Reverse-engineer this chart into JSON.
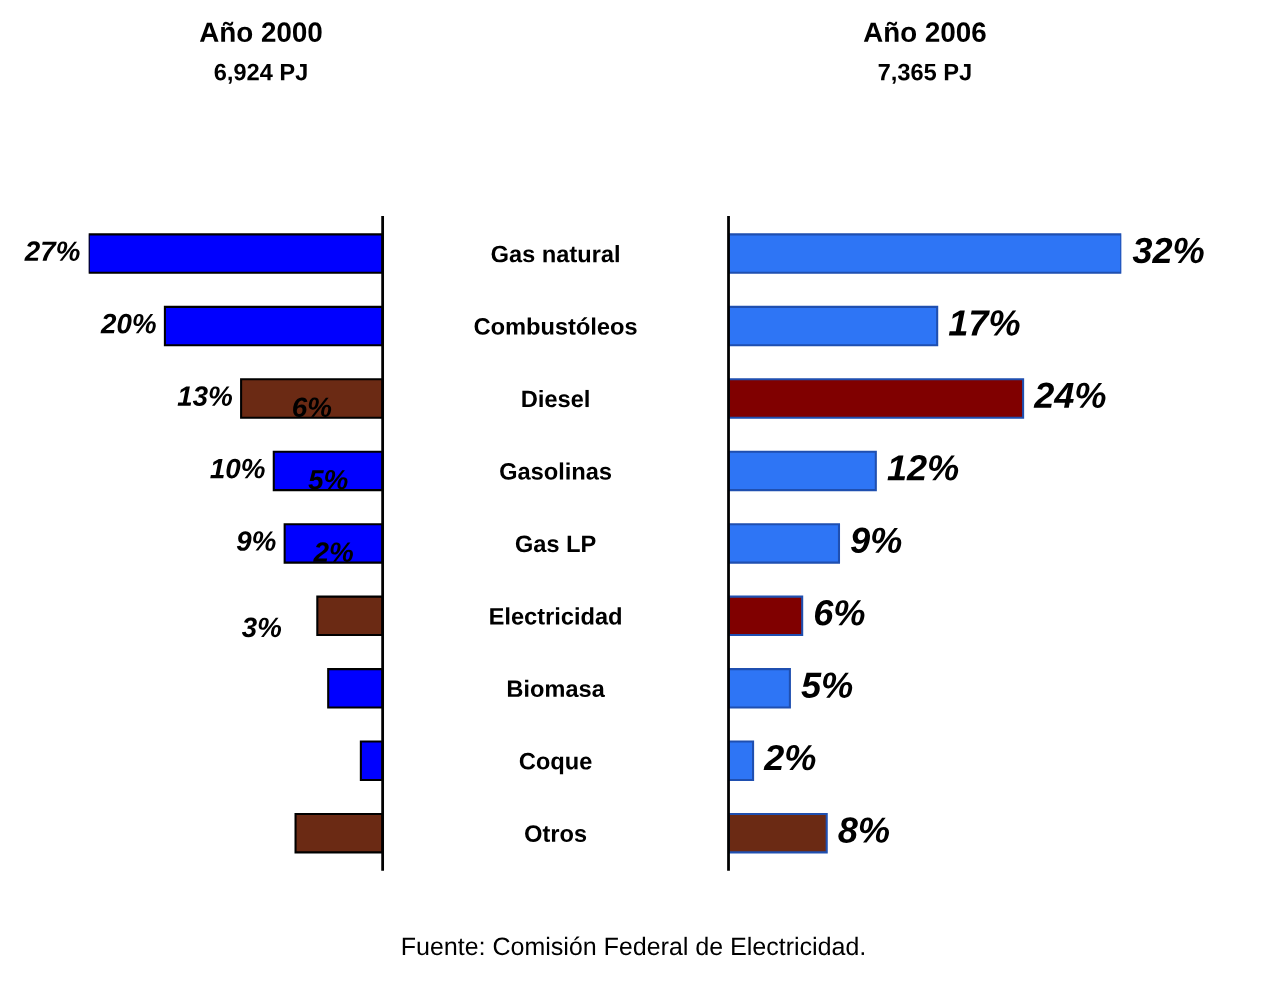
{
  "chart_data": [
    {
      "type": "bar",
      "orientation": "horizontal",
      "title": "Año 2000",
      "subtitle": "6,924 PJ",
      "categories": [
        "Gas natural",
        "Combustóleos",
        "Diesel",
        "Gasolinas",
        "Gas LP",
        "Electricidad",
        "Biomasa",
        "Coque",
        "Otros"
      ],
      "values": [
        27,
        20,
        13,
        10,
        9,
        6,
        5,
        2,
        8
      ],
      "colors": [
        "#0000ff",
        "#0000ff",
        "#6b2a14",
        "#0000ff",
        "#0000ff",
        "#6b2a14",
        "#0000ff",
        "#0000ff",
        "#6b2a14"
      ],
      "value_labels": [
        "27%",
        "20%",
        "13%",
        "10%",
        "9%",
        null,
        null,
        null,
        null
      ],
      "xlim": [
        27,
        0
      ],
      "tick_labels": "y",
      "annotations": [
        "6%",
        "5%",
        "2%",
        "3%",
        "Fuente: Comisión Federal de Electricidad."
      ]
    },
    {
      "type": "bar",
      "orientation": "horizontal",
      "title": "Año 2006",
      "subtitle": "7,365 PJ",
      "categories": [
        null,
        null,
        null,
        null,
        null,
        null,
        null,
        null,
        null
      ],
      "values": [
        32,
        17,
        24,
        12,
        9,
        6,
        5,
        2,
        8
      ],
      "colors": [
        "#2e75f5",
        "#2e75f5",
        "#800000",
        "#2e75f5",
        "#2e75f5",
        "#800000",
        "#2e75f5",
        "#2e75f5",
        "#6b2a14"
      ],
      "value_labels": [
        "32%",
        "17%",
        "24%",
        "12%",
        "9%",
        "6%",
        "5%",
        "2%",
        "8%"
      ],
      "xlim": [
        0,
        32
      ],
      "tick_labels": false
    }
  ]
}
